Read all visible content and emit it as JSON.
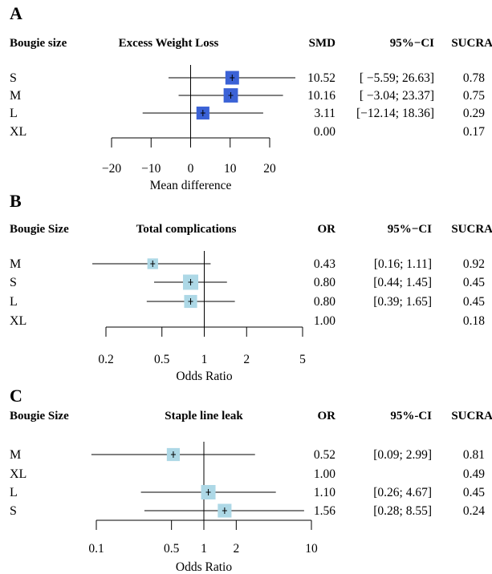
{
  "chart_data": [
    {
      "type": "forest",
      "panel_letter": "A",
      "title": "Excess Weight Loss",
      "xlabel": "Mean difference",
      "scale": "linear",
      "xlim": [
        -20,
        20
      ],
      "ticks": [
        -20,
        -10,
        0,
        10,
        20
      ],
      "tick_labels": [
        "−20",
        "−10",
        "0",
        "10",
        "20"
      ],
      "reference": 0,
      "marker_color": "#3b62d6",
      "headers": {
        "group": "Bougie size",
        "effect": "SMD",
        "ci": "95%−CI",
        "sucra": "SUCRA"
      },
      "rows": [
        {
          "label": "S",
          "est": 10.52,
          "lo": -5.59,
          "hi": 26.63,
          "size": 1.0,
          "effect_text": "10.52",
          "ci_text": "[ −5.59; 26.63]",
          "sucra_text": "0.78"
        },
        {
          "label": "M",
          "est": 10.16,
          "lo": -3.04,
          "hi": 23.37,
          "size": 1.05,
          "effect_text": "10.16",
          "ci_text": "[ −3.04; 23.37]",
          "sucra_text": "0.75"
        },
        {
          "label": "L",
          "est": 3.11,
          "lo": -12.14,
          "hi": 18.36,
          "size": 0.95,
          "effect_text": "3.11",
          "ci_text": "[−12.14; 18.36]",
          "sucra_text": "0.29"
        },
        {
          "label": "XL",
          "est": null,
          "lo": null,
          "hi": null,
          "size": 0,
          "effect_text": "0.00",
          "ci_text": "",
          "sucra_text": "0.17"
        }
      ]
    },
    {
      "type": "forest",
      "panel_letter": "B",
      "title": "Total complications",
      "xlabel": "Odds Ratio",
      "scale": "log",
      "xlim": [
        0.2,
        5
      ],
      "ticks": [
        0.2,
        0.5,
        1,
        2,
        5
      ],
      "tick_labels": [
        "0.2",
        "0.5",
        "1",
        "2",
        "5"
      ],
      "reference": 1,
      "marker_color": "#add8e6",
      "headers": {
        "group": "Bougie Size",
        "effect": "OR",
        "ci": "95%−CI",
        "sucra": "SUCRA"
      },
      "rows": [
        {
          "label": "M",
          "est": 0.43,
          "lo": 0.16,
          "hi": 1.11,
          "size": 0.7,
          "effect_text": "0.43",
          "ci_text": "[0.16; 1.11]",
          "sucra_text": "0.92"
        },
        {
          "label": "S",
          "est": 0.8,
          "lo": 0.44,
          "hi": 1.45,
          "size": 1.0,
          "effect_text": "0.80",
          "ci_text": "[0.44; 1.45]",
          "sucra_text": "0.45"
        },
        {
          "label": "L",
          "est": 0.8,
          "lo": 0.39,
          "hi": 1.65,
          "size": 0.85,
          "effect_text": "0.80",
          "ci_text": "[0.39; 1.65]",
          "sucra_text": "0.45"
        },
        {
          "label": "XL",
          "est": null,
          "lo": null,
          "hi": null,
          "size": 0,
          "effect_text": "1.00",
          "ci_text": "",
          "sucra_text": "0.18"
        }
      ]
    },
    {
      "type": "forest",
      "panel_letter": "C",
      "title": "Staple line leak",
      "xlabel": "Odds Ratio",
      "scale": "log",
      "xlim": [
        0.1,
        10
      ],
      "ticks": [
        0.1,
        0.5,
        1,
        2,
        10
      ],
      "tick_labels": [
        "0.1",
        "0.5",
        "1",
        "2",
        "10"
      ],
      "reference": 1,
      "marker_color": "#add8e6",
      "headers": {
        "group": "Bougie Size",
        "effect": "OR",
        "ci": "95%-CI",
        "sucra": "SUCRA"
      },
      "rows": [
        {
          "label": "M",
          "est": 0.52,
          "lo": 0.09,
          "hi": 2.99,
          "size": 0.9,
          "effect_text": "0.52",
          "ci_text": "[0.09; 2.99]",
          "sucra_text": "0.81"
        },
        {
          "label": "XL",
          "est": null,
          "lo": null,
          "hi": null,
          "size": 0,
          "effect_text": "1.00",
          "ci_text": "",
          "sucra_text": "0.49"
        },
        {
          "label": "L",
          "est": 1.1,
          "lo": 0.26,
          "hi": 4.67,
          "size": 1.0,
          "effect_text": "1.10",
          "ci_text": "[0.26; 4.67]",
          "sucra_text": "0.45"
        },
        {
          "label": "S",
          "est": 1.56,
          "lo": 0.28,
          "hi": 8.55,
          "size": 0.95,
          "effect_text": "1.56",
          "ci_text": "[0.28; 8.55]",
          "sucra_text": "0.24"
        }
      ]
    }
  ]
}
